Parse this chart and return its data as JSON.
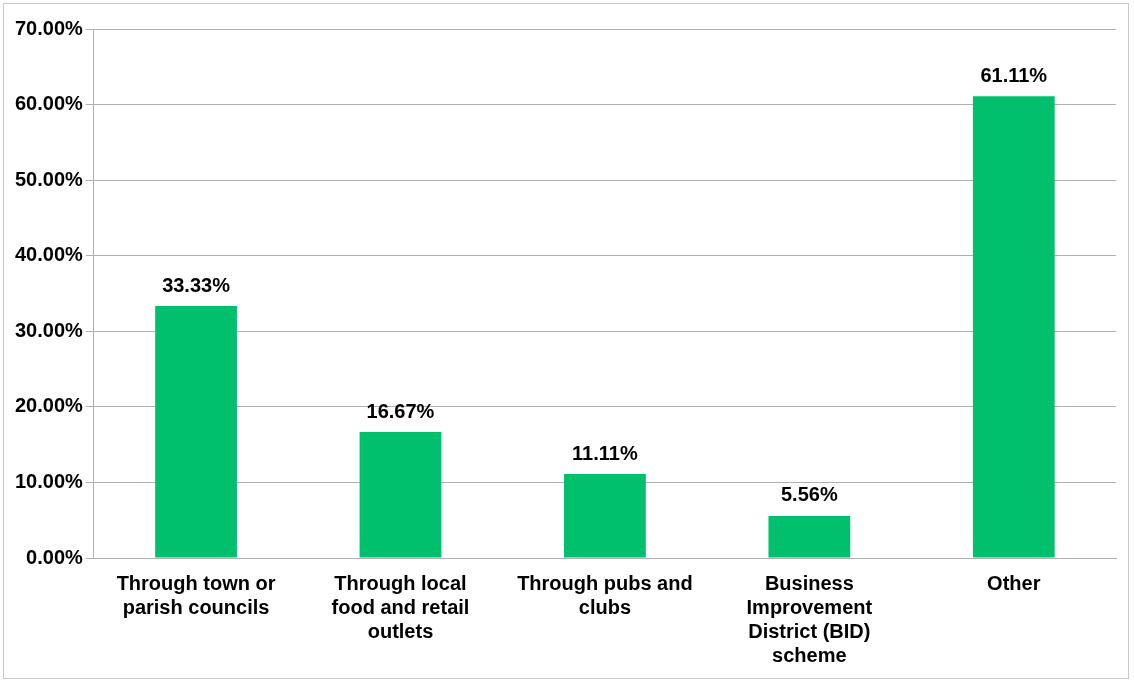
{
  "chart_data": {
    "type": "bar",
    "categories": [
      "Through town or parish councils",
      "Through local food and retail outlets",
      "Through pubs and clubs",
      "Business Improvement District (BID) scheme",
      "Other"
    ],
    "values": [
      33.33,
      16.67,
      11.11,
      5.56,
      61.11
    ],
    "value_labels": [
      "33.33%",
      "16.67%",
      "11.11%",
      "5.56%",
      "61.11%"
    ],
    "color": "#00c06e",
    "ylim": [
      0,
      70
    ],
    "yticks": [
      {
        "value": 0,
        "label": "0.00%"
      },
      {
        "value": 10,
        "label": "10.00%"
      },
      {
        "value": 20,
        "label": "20.00%"
      },
      {
        "value": 30,
        "label": "30.00%"
      },
      {
        "value": 40,
        "label": "40.00%"
      },
      {
        "value": 50,
        "label": "50.00%"
      },
      {
        "value": 60,
        "label": "60.00%"
      },
      {
        "value": 70,
        "label": "70.00%"
      }
    ],
    "grid": "y",
    "legend": false
  }
}
